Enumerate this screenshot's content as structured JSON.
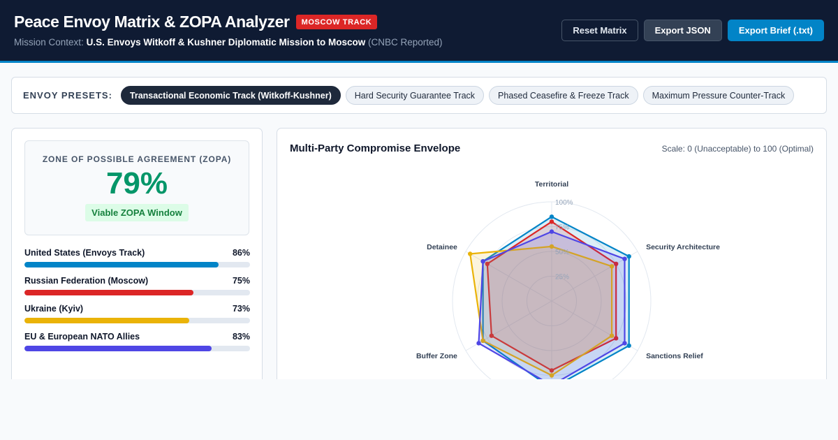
{
  "header": {
    "title": "Peace Envoy Matrix & ZOPA Analyzer",
    "badge": "MOSCOW TRACK",
    "mission_prefix": "Mission Context:",
    "mission_strong": "U.S. Envoys Witkoff & Kushner Diplomatic Mission to Moscow",
    "mission_suffix": "(CNBC Reported)",
    "buttons": {
      "reset": "Reset Matrix",
      "export_json": "Export JSON",
      "export_brief": "Export Brief (.txt)"
    }
  },
  "presets": {
    "label": "ENVOY PRESETS:",
    "items": [
      {
        "label": "Transactional Economic Track (Witkoff-Kushner)",
        "active": true
      },
      {
        "label": "Hard Security Guarantee Track",
        "active": false
      },
      {
        "label": "Phased Ceasefire & Freeze Track",
        "active": false
      },
      {
        "label": "Maximum Pressure Counter-Track",
        "active": false
      }
    ]
  },
  "zopa": {
    "label": "ZONE OF POSSIBLE AGREEMENT (ZOPA)",
    "value": "79%",
    "status": "Viable ZOPA Window"
  },
  "parties": [
    {
      "name": "United States (Envoys Track)",
      "pct_label": "86%",
      "value": 86,
      "color": "#0284c7"
    },
    {
      "name": "Russian Federation (Moscow)",
      "pct_label": "75%",
      "value": 75,
      "color": "#dc2626"
    },
    {
      "name": "Ukraine (Kyiv)",
      "pct_label": "73%",
      "value": 73,
      "color": "#eab308"
    },
    {
      "name": "EU & European NATO Allies",
      "pct_label": "83%",
      "value": 83,
      "color": "#4f46e5"
    }
  ],
  "chart": {
    "title": "Multi-Party Compromise Envelope",
    "scale": "Scale: 0 (Unacceptable) to 100 (Optimal)"
  },
  "chart_data": {
    "type": "radar",
    "axes": [
      "Territorial",
      "Security Architecture",
      "Sanctions Relief",
      "",
      "Buffer Zone",
      "Detainee"
    ],
    "ring_labels": [
      "25%",
      "50%",
      "75%",
      "100%"
    ],
    "range": [
      0,
      100
    ],
    "series": [
      {
        "name": "United States (Envoys Track)",
        "color": "#0284c7",
        "values": [
          85,
          90,
          90,
          88,
          80,
          80
        ]
      },
      {
        "name": "Russian Federation (Moscow)",
        "color": "#dc2626",
        "values": [
          80,
          75,
          75,
          70,
          70,
          75
        ]
      },
      {
        "name": "Ukraine (Kyiv)",
        "color": "#eab308",
        "values": [
          55,
          70,
          70,
          75,
          80,
          95
        ]
      },
      {
        "name": "EU & European NATO Allies",
        "color": "#4f46e5",
        "values": [
          70,
          85,
          85,
          85,
          85,
          80
        ]
      }
    ]
  }
}
